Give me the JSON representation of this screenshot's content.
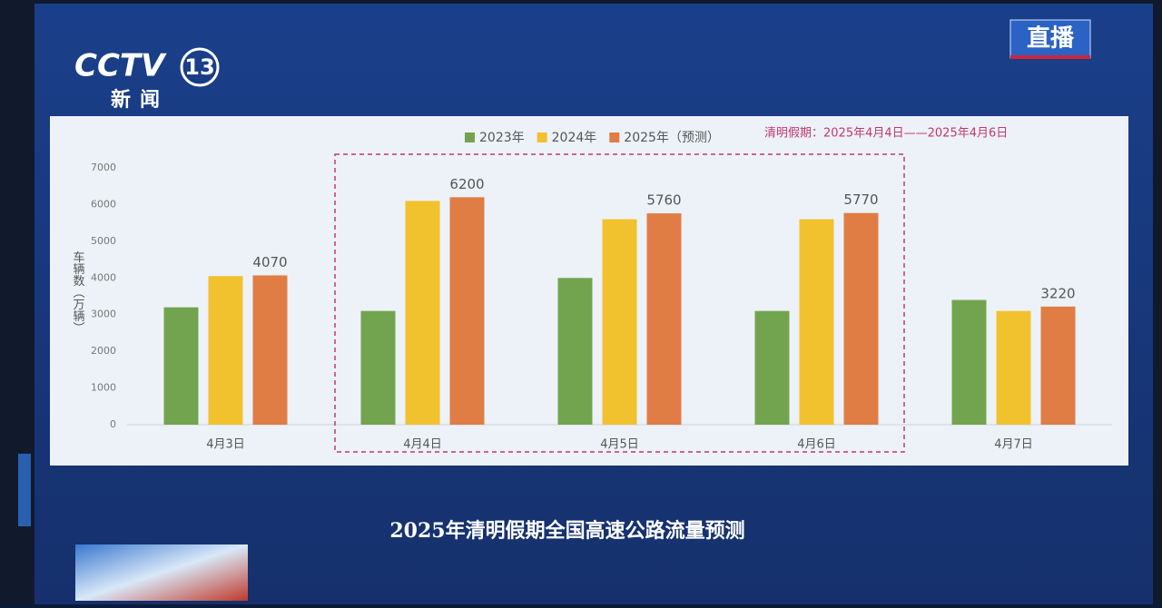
{
  "channel": {
    "logo": "CCTV",
    "number": "13",
    "name": "新闻",
    "live": "直播"
  },
  "chart_data": {
    "type": "bar",
    "title": "2025年清明假期全国高速公路流量预测",
    "y_label": "车辆数（万辆）",
    "annotation": "清明假期：2025年4月4日——2025年4月6日",
    "highlight_range": [
      1,
      3
    ],
    "categories": [
      "4月3日",
      "4月4日",
      "4月5日",
      "4月6日",
      "4月7日"
    ],
    "series": [
      {
        "name": "2023年",
        "color": "#72a44f",
        "values": [
          3200,
          3100,
          4000,
          3100,
          3400
        ]
      },
      {
        "name": "2024年",
        "color": "#f2c12e",
        "values": [
          4050,
          6100,
          5600,
          5600,
          3100
        ]
      },
      {
        "name": "2025年（预测）",
        "color": "#e07d44",
        "values": [
          4070,
          6200,
          5760,
          5770,
          3220
        ],
        "show_labels": true
      }
    ],
    "ylim": [
      0,
      7000
    ],
    "yticks": [
      0,
      1000,
      2000,
      3000,
      4000,
      5000,
      6000,
      7000
    ],
    "grid": false
  }
}
